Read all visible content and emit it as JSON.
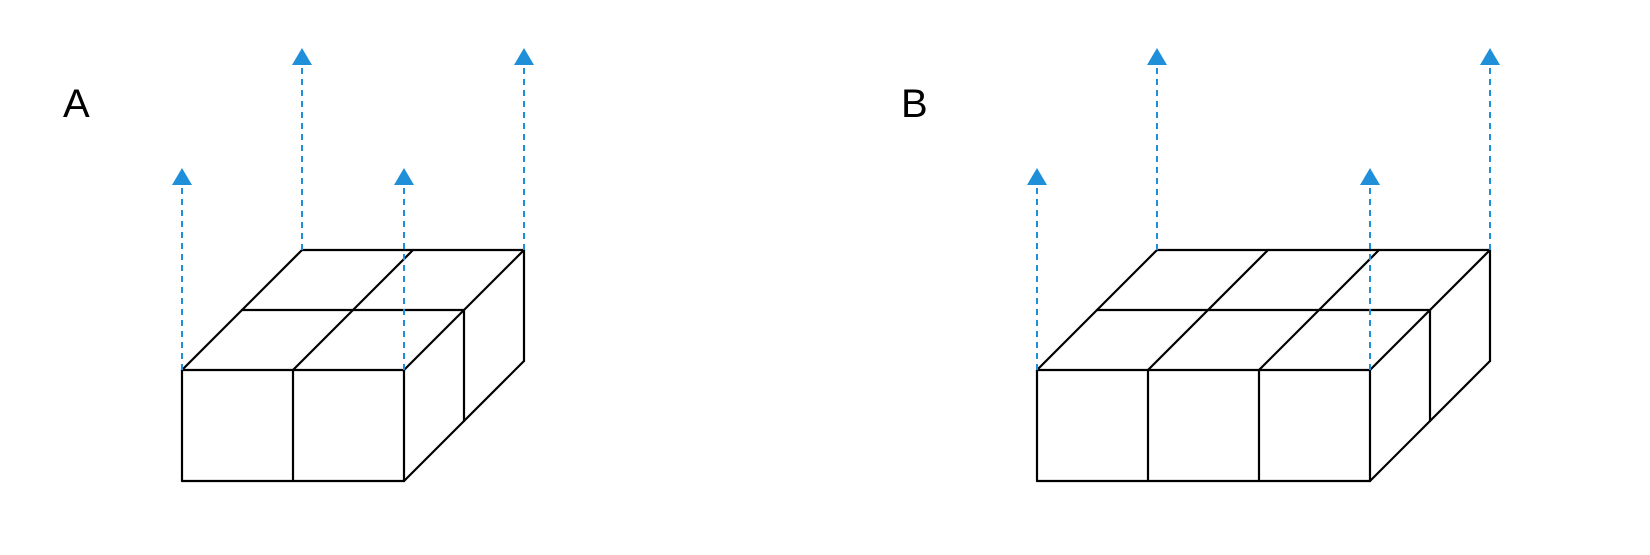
{
  "colors": {
    "arrow": "#1E8FD8",
    "edge": "#000000",
    "background": "#FFFFFF"
  },
  "panels": [
    {
      "label": "A",
      "front_cubes": 2,
      "depth_cubes": 2,
      "top_arrows": 4
    },
    {
      "label": "B",
      "front_cubes": 3,
      "depth_cubes": 2,
      "top_arrows": 4
    }
  ]
}
